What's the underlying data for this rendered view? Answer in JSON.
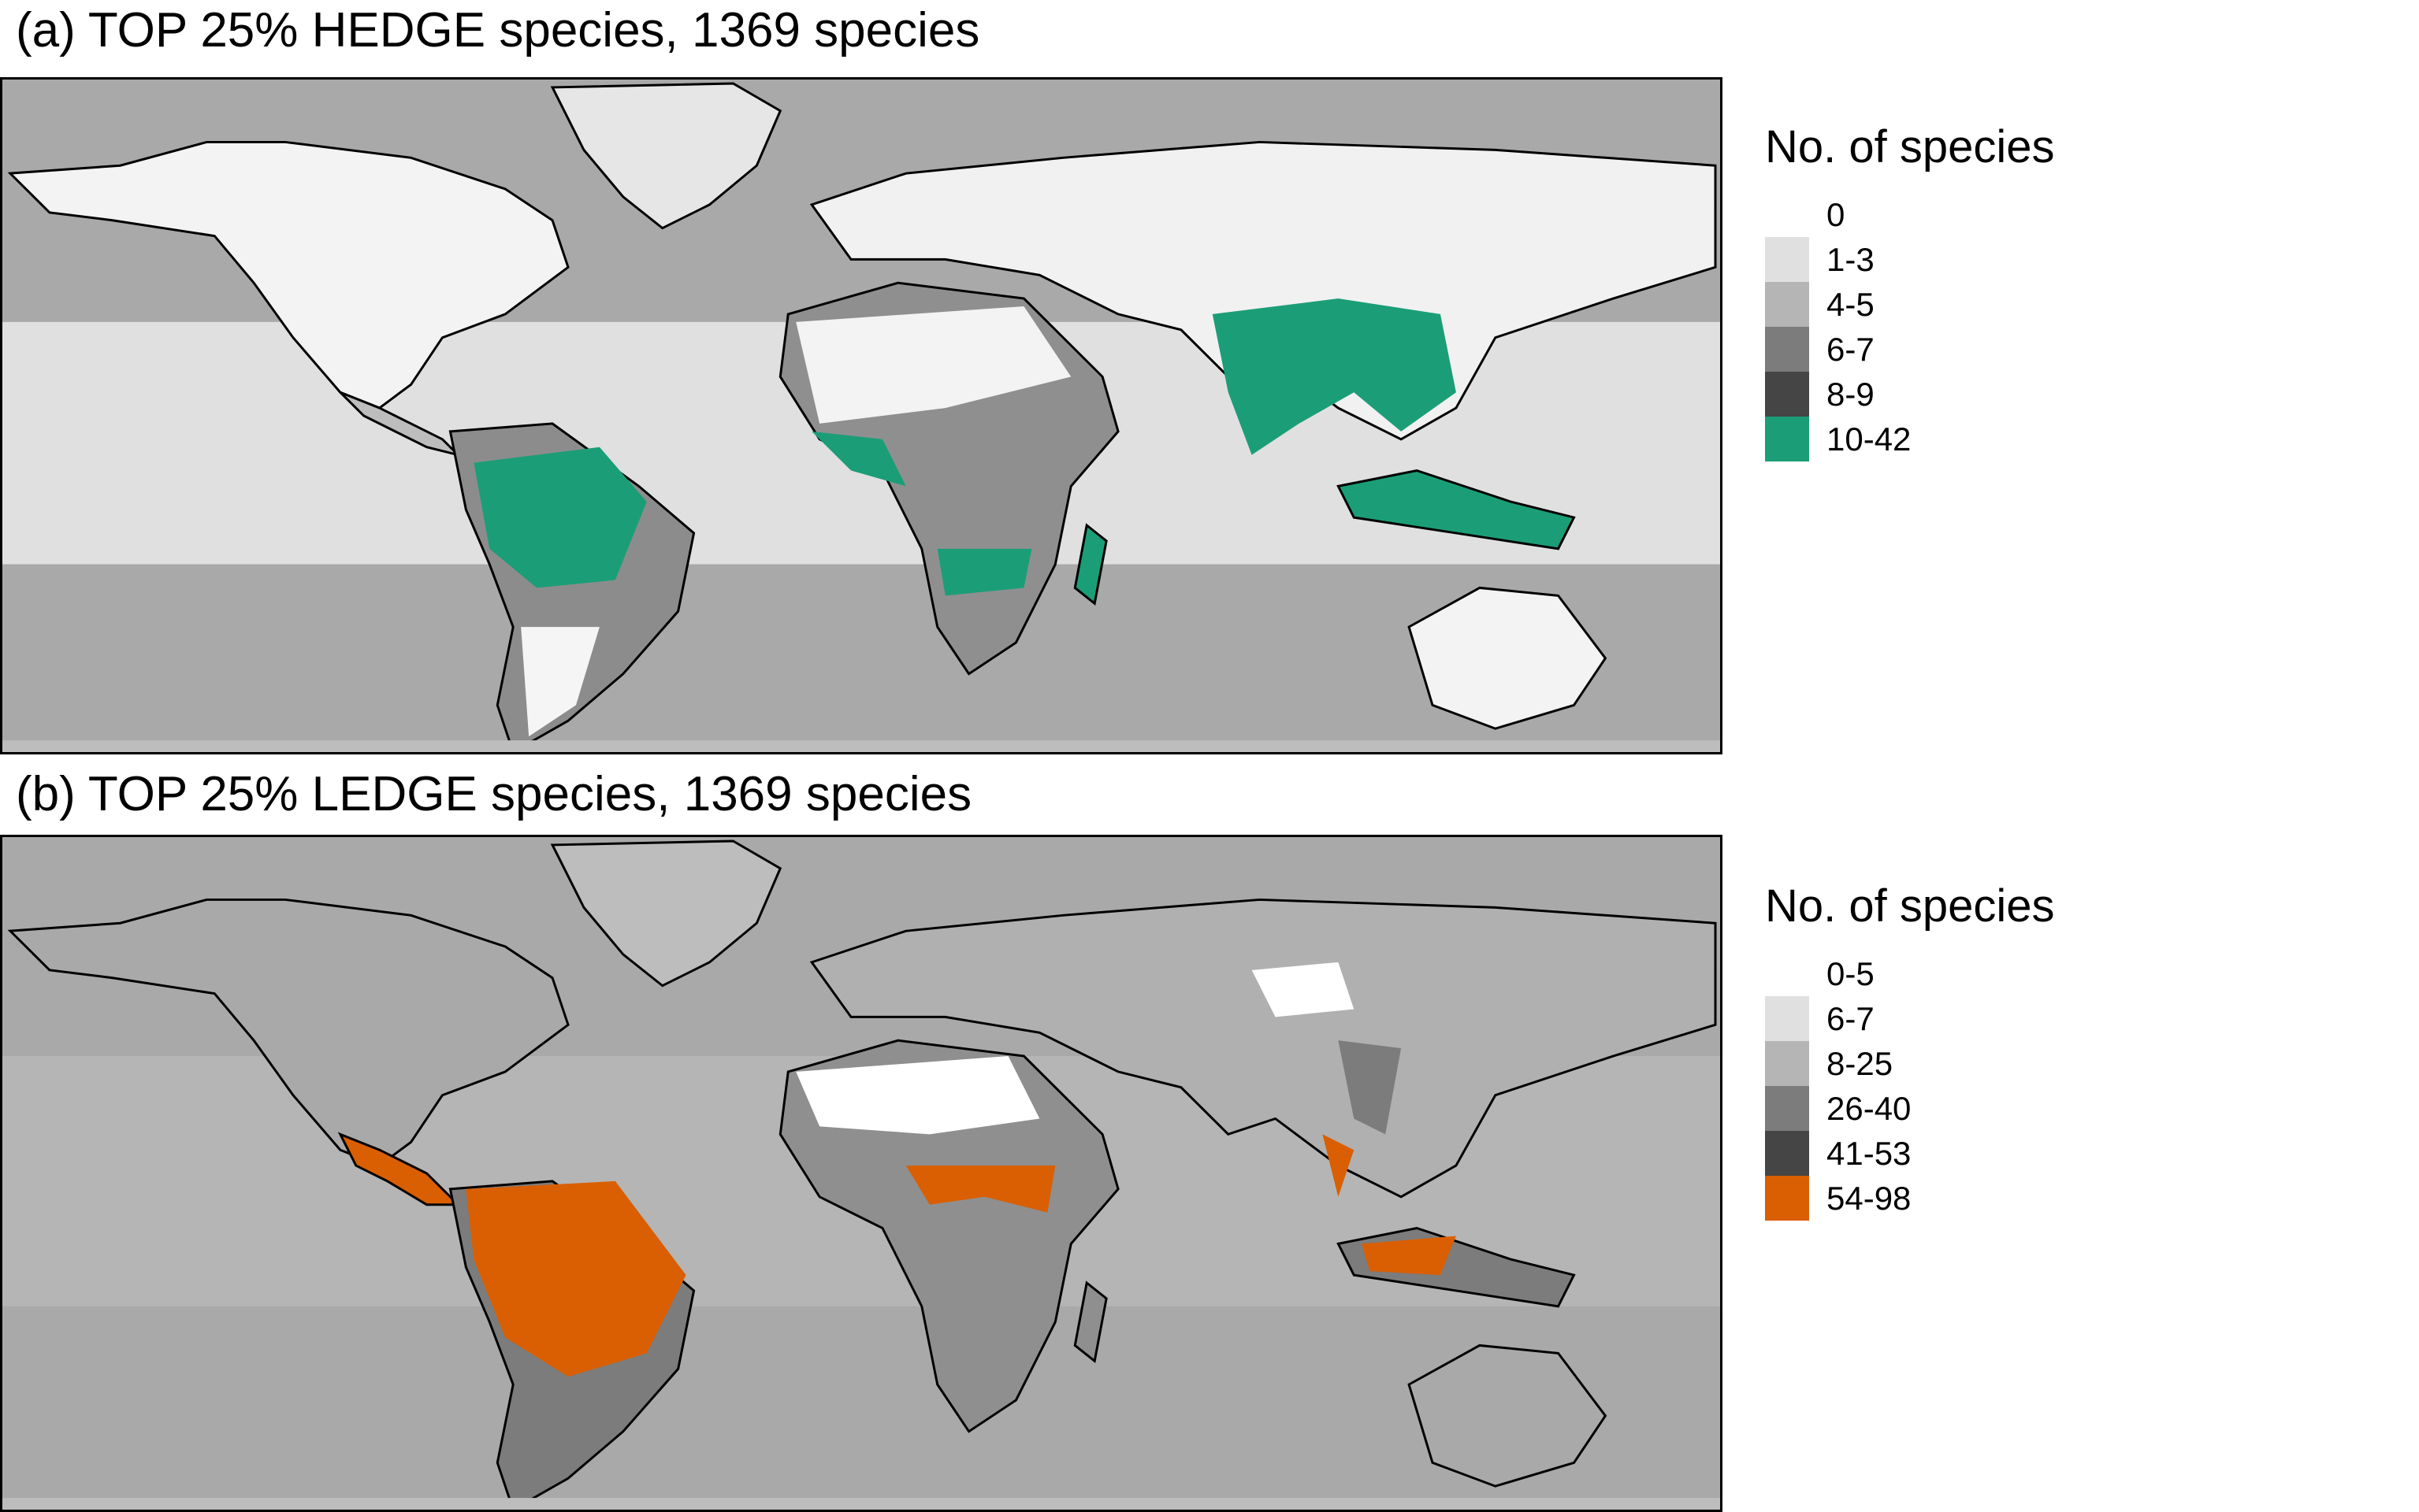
{
  "panels": [
    {
      "title": "(a) TOP 25% HEDGE species, 1369 species",
      "legend": {
        "title": "No. of species",
        "entries": [
          {
            "label": "0",
            "color": "#ffffff"
          },
          {
            "label": "1-3",
            "color": "#e0e0e0"
          },
          {
            "label": "4-5",
            "color": "#b5b5b5"
          },
          {
            "label": "6-7",
            "color": "#7c7c7c"
          },
          {
            "label": "8-9",
            "color": "#454545"
          },
          {
            "label": "10-42",
            "color": "#1b9e77"
          }
        ]
      },
      "highlight_color": "#1b9e77"
    },
    {
      "title": "(b) TOP 25% LEDGE species, 1369 species",
      "legend": {
        "title": "No. of species",
        "entries": [
          {
            "label": "0-5",
            "color": "#ffffff"
          },
          {
            "label": "6-7",
            "color": "#e0e0e0"
          },
          {
            "label": "8-25",
            "color": "#b5b5b5"
          },
          {
            "label": "26-40",
            "color": "#7c7c7c"
          },
          {
            "label": "41-53",
            "color": "#454545"
          },
          {
            "label": "54-98",
            "color": "#d95f02"
          }
        ]
      },
      "highlight_color": "#d95f02"
    }
  ]
}
